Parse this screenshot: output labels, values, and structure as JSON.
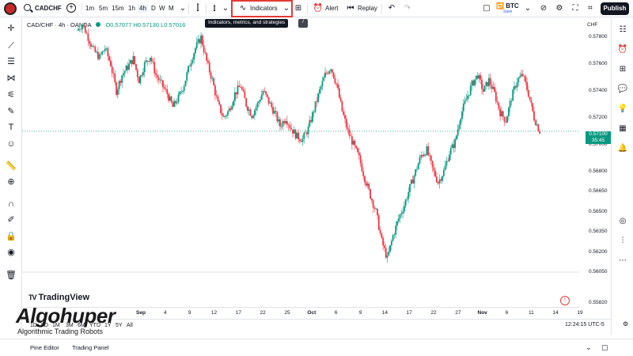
{
  "toolbar": {
    "symbol": "CADCHF",
    "timeframes": [
      "1m",
      "5m",
      "15m",
      "1h",
      "4h",
      "D",
      "W",
      "M"
    ],
    "active_timeframe": "4h",
    "indicators_label": "Indicators",
    "alert_label": "Alert",
    "replay_label": "Replay",
    "watch_symbol": "BTC",
    "watch_sub": "Save",
    "publish_label": "Publish",
    "tooltip_text": "Indicators, metrics, and strategies",
    "tooltip_key": "/"
  },
  "legend": {
    "title": "CAD/CHF · 4h · OANDA",
    "ohlc": "O0.57077 H0.57130 L0.57016"
  },
  "chart_data": {
    "type": "candlestick",
    "currency": "CHF",
    "ylim": [
      0.5582,
      0.5786
    ],
    "y_ticks": [
      "0.57800",
      "0.57600",
      "0.57400",
      "0.57200",
      "0.57000",
      "0.56800",
      "0.56650",
      "0.56500",
      "0.56350",
      "0.56200",
      "0.56050",
      "0.55820"
    ],
    "x_ticks": [
      {
        "label": "Sep",
        "bold": true
      },
      {
        "label": "4"
      },
      {
        "label": "9"
      },
      {
        "label": "12"
      },
      {
        "label": "17"
      },
      {
        "label": "22"
      },
      {
        "label": "25"
      },
      {
        "label": "Oct",
        "bold": true
      },
      {
        "label": "6"
      },
      {
        "label": "9"
      },
      {
        "label": "14"
      },
      {
        "label": "17"
      },
      {
        "label": "22"
      },
      {
        "label": "27"
      },
      {
        "label": "Nov",
        "bold": true
      },
      {
        "label": "6"
      },
      {
        "label": "11"
      },
      {
        "label": "14"
      },
      {
        "label": "19"
      }
    ],
    "current_price": "0.57100",
    "countdown": "35:45",
    "colors": {
      "up": "#089981",
      "down": "#f23645"
    },
    "closes": [
      0.5785,
      0.579,
      0.578,
      0.577,
      0.5765,
      0.5772,
      0.576,
      0.574,
      0.5752,
      0.5758,
      0.5764,
      0.5748,
      0.576,
      0.5766,
      0.5752,
      0.5745,
      0.5738,
      0.5728,
      0.5735,
      0.5745,
      0.576,
      0.5772,
      0.578,
      0.5762,
      0.5748,
      0.573,
      0.572,
      0.5726,
      0.5738,
      0.5744,
      0.573,
      0.5722,
      0.573,
      0.574,
      0.5732,
      0.5724,
      0.5714,
      0.572,
      0.5712,
      0.5706,
      0.5704,
      0.5712,
      0.5726,
      0.574,
      0.5752,
      0.5758,
      0.5745,
      0.5725,
      0.571,
      0.57,
      0.569,
      0.5675,
      0.5662,
      0.565,
      0.5628,
      0.5615,
      0.5632,
      0.5645,
      0.5655,
      0.5668,
      0.568,
      0.5692,
      0.5696,
      0.5682,
      0.5672,
      0.568,
      0.5694,
      0.5702,
      0.5722,
      0.5734,
      0.5745,
      0.5752,
      0.574,
      0.5748,
      0.5738,
      0.5724,
      0.5718,
      0.5735,
      0.5748,
      0.5752,
      0.5738,
      0.572,
      0.571
    ],
    "watermark": "TradingView"
  },
  "ranges": [
    "1D",
    "5D",
    "1M",
    "3M",
    "6M",
    "YTD",
    "1Y",
    "5Y",
    "All"
  ],
  "clock": "12:24:15 UTC-5",
  "bottom_tabs": [
    "Pine Editor",
    "Trading Panel"
  ],
  "overlay": {
    "brand": "Algohuper",
    "tagline": "Algorithmic Trading Robots"
  },
  "icons": {
    "left": [
      "crosshair-icon",
      "trendline-icon",
      "fib-icon",
      "pattern-icon",
      "forecast-icon",
      "brush-icon",
      "text-icon",
      "emoji-icon",
      "ruler-icon",
      "zoom-icon",
      "magnet-icon",
      "lock-icon",
      "eye-icon",
      "trash-icon"
    ],
    "right": [
      "watchlist-icon",
      "alerts-icon",
      "object-tree-icon",
      "chat-icon",
      "ideas-icon",
      "calendar-icon",
      "notifications-icon",
      "data-icon",
      "layers-icon",
      "help-icon"
    ]
  }
}
